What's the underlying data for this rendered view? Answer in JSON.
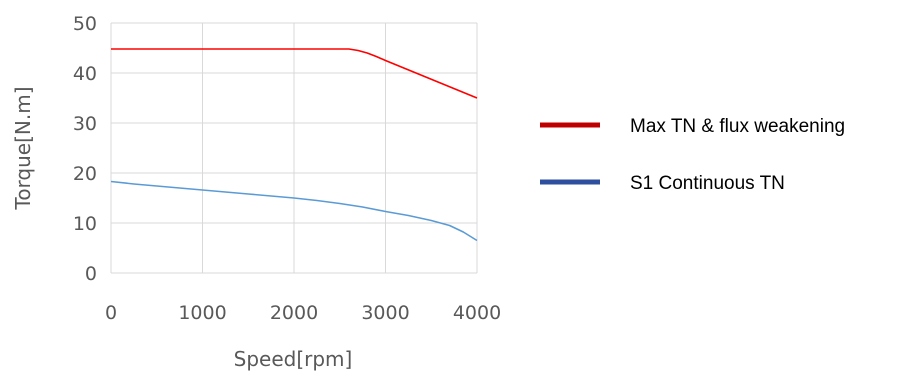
{
  "chart_data": {
    "type": "line",
    "xlabel": "Speed[rpm]",
    "ylabel": "Torque[N.m]",
    "xlim": [
      0,
      4000
    ],
    "ylim": [
      0,
      50
    ],
    "x_ticks": [
      0,
      1000,
      2000,
      3000,
      4000
    ],
    "y_ticks": [
      0,
      10,
      20,
      30,
      40,
      50
    ],
    "grid": true,
    "legend_position": "right",
    "series": [
      {
        "name": "Max TN & flux weakening",
        "color": "#ff0000",
        "legend_color": "#c00000",
        "x": [
          0,
          500,
          1000,
          1500,
          2000,
          2500,
          2600,
          2700,
          2800,
          2900,
          3000,
          3200,
          3400,
          3600,
          3800,
          4000
        ],
        "y": [
          44.8,
          44.8,
          44.8,
          44.8,
          44.8,
          44.8,
          44.8,
          44.5,
          44.0,
          43.3,
          42.5,
          41.0,
          39.5,
          38.0,
          36.5,
          35.0
        ]
      },
      {
        "name": "S1 Continuous TN",
        "color": "#5b9bd5",
        "legend_color": "#2e4f9e",
        "x": [
          0,
          250,
          500,
          750,
          1000,
          1250,
          1500,
          1750,
          2000,
          2250,
          2500,
          2750,
          3000,
          3250,
          3500,
          3700,
          3850,
          4000
        ],
        "y": [
          18.3,
          17.8,
          17.4,
          17.0,
          16.6,
          16.2,
          15.8,
          15.4,
          15.0,
          14.5,
          13.9,
          13.2,
          12.3,
          11.5,
          10.5,
          9.5,
          8.2,
          6.5
        ]
      }
    ]
  }
}
